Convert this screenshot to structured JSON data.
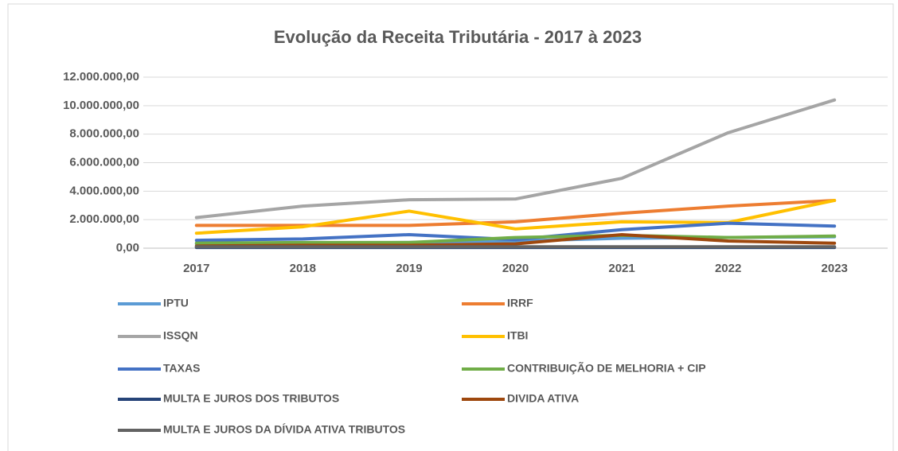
{
  "chart_data": {
    "type": "line",
    "title": "Evolução da Receita Tributária - 2017 à 2023",
    "categories": [
      "2017",
      "2018",
      "2019",
      "2020",
      "2021",
      "2022",
      "2023"
    ],
    "ylim": [
      0,
      12000000
    ],
    "yticks": [
      {
        "value": 0,
        "label": "0,00"
      },
      {
        "value": 2000000,
        "label": "2.000.000,00"
      },
      {
        "value": 4000000,
        "label": "4.000.000,00"
      },
      {
        "value": 6000000,
        "label": "6.000.000,00"
      },
      {
        "value": 8000000,
        "label": "8.000.000,00"
      },
      {
        "value": 10000000,
        "label": "10.000.000,00"
      },
      {
        "value": 12000000,
        "label": "12.000.000,00"
      }
    ],
    "grid": true,
    "legend": "bottom",
    "series": [
      {
        "name": "IPTU",
        "color": "#5b9bd5",
        "values": [
          300000,
          350000,
          400000,
          500000,
          700000,
          750000,
          800000
        ]
      },
      {
        "name": "IRRF",
        "color": "#ed7d31",
        "values": [
          1600000,
          1600000,
          1600000,
          1850000,
          2450000,
          2950000,
          3350000
        ]
      },
      {
        "name": "ISSQN",
        "color": "#a5a5a5",
        "values": [
          2150000,
          2950000,
          3400000,
          3450000,
          4900000,
          8100000,
          10400000
        ]
      },
      {
        "name": "ITBI",
        "color": "#ffc000",
        "values": [
          1050000,
          1500000,
          2600000,
          1350000,
          1850000,
          1800000,
          3350000
        ]
      },
      {
        "name": "TAXAS",
        "color": "#4472c4",
        "values": [
          550000,
          650000,
          950000,
          600000,
          1300000,
          1750000,
          1550000
        ]
      },
      {
        "name": "CONTRIBUIÇÃO DE MELHORIA + CIP",
        "color": "#70ad47",
        "values": [
          350000,
          400000,
          400000,
          750000,
          900000,
          750000,
          850000
        ]
      },
      {
        "name": "MULTA E JUROS DOS TRIBUTOS",
        "color": "#264478",
        "values": [
          50000,
          50000,
          50000,
          50000,
          50000,
          50000,
          50000
        ]
      },
      {
        "name": "DIVIDA ATIVA",
        "color": "#9e480e",
        "values": [
          150000,
          200000,
          200000,
          300000,
          950000,
          500000,
          350000
        ]
      },
      {
        "name": "MULTA E JUROS DA DÍVIDA ATIVA TRIBUTOS",
        "color": "#636363",
        "values": [
          100000,
          100000,
          100000,
          100000,
          100000,
          100000,
          100000
        ]
      }
    ]
  }
}
